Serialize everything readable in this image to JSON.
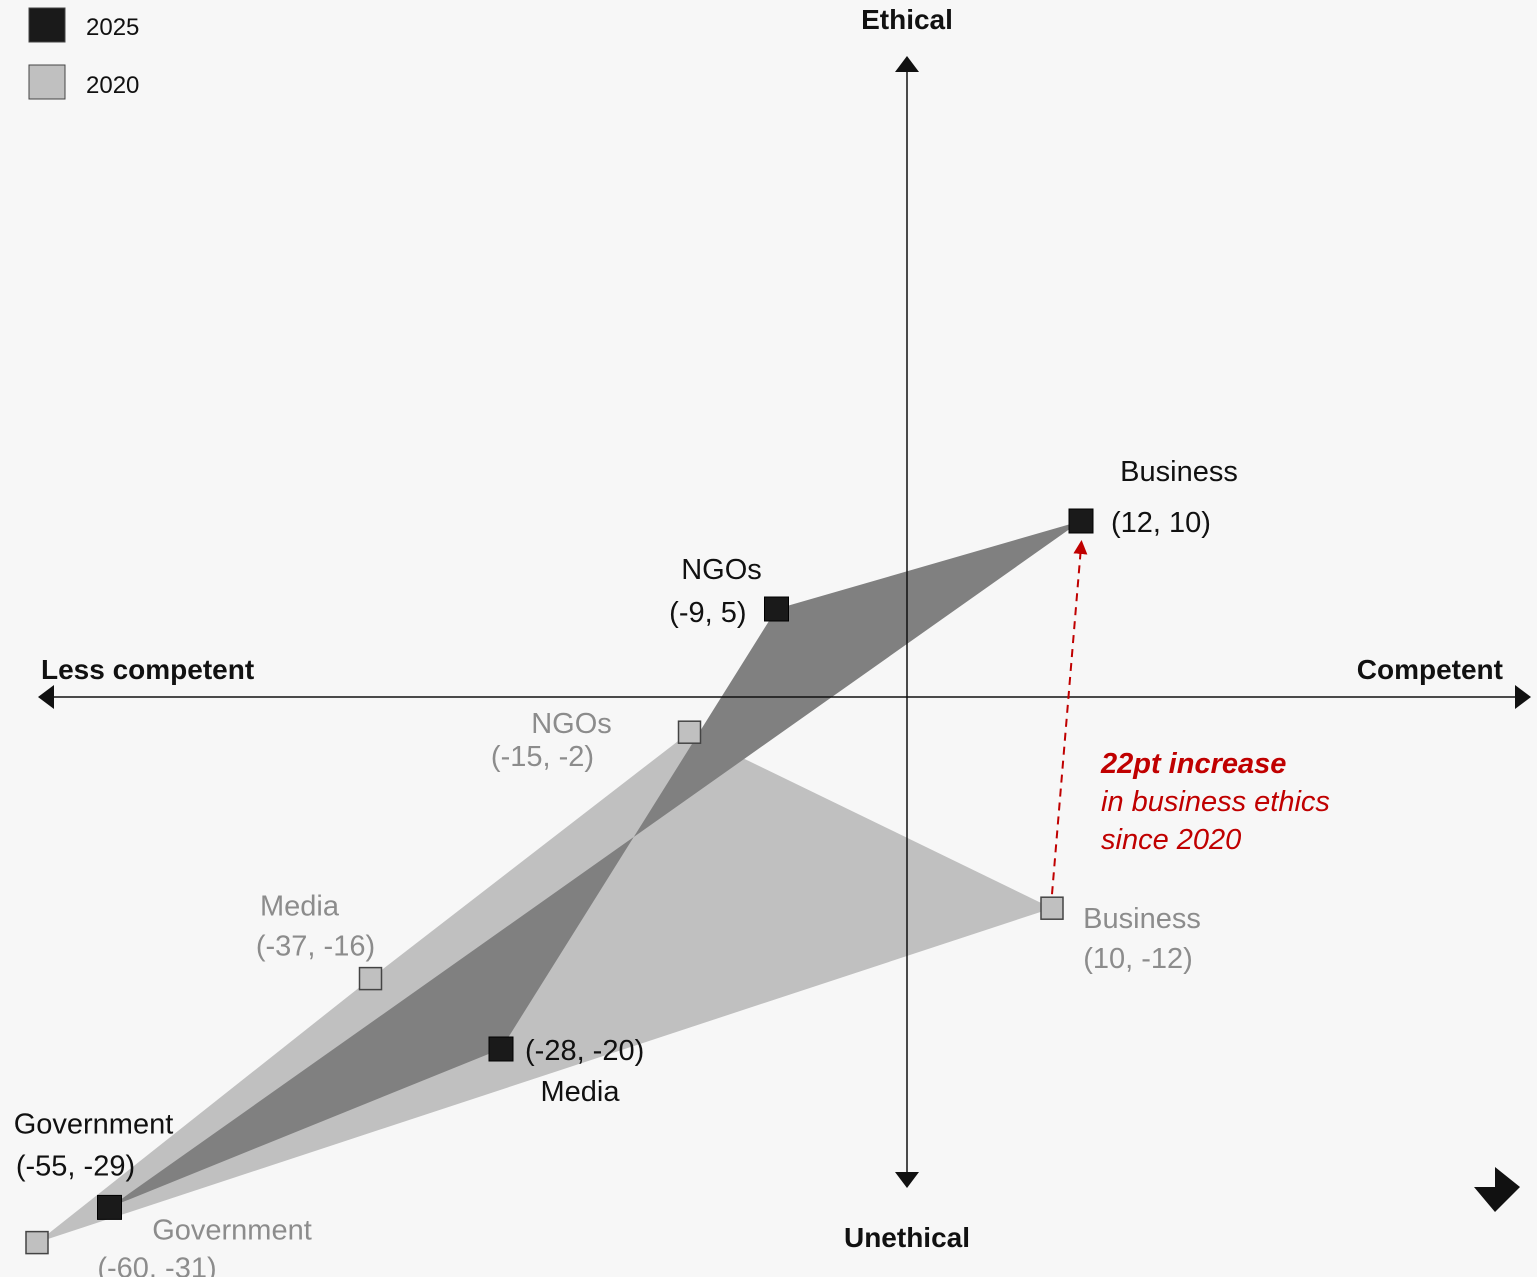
{
  "chart_data": {
    "type": "scatter",
    "axes": {
      "top": "Ethical",
      "bottom": "Unethical",
      "left": "Less competent",
      "right": "Competent"
    },
    "series": [
      {
        "name": "2025",
        "color": "#1a1a1a",
        "fill_color": "#808080",
        "points": [
          {
            "label": "Business",
            "coord": "(12, 10)",
            "x": 12,
            "y": 10
          },
          {
            "label": "NGOs",
            "coord": "(-9, 5)",
            "x": -9,
            "y": 5
          },
          {
            "label": "Media",
            "coord": "(-28, -20)",
            "x": -28,
            "y": -20
          },
          {
            "label": "Government",
            "coord": "(-55, -29)",
            "x": -55,
            "y": -29
          }
        ]
      },
      {
        "name": "2020",
        "color": "#c0c0c0",
        "fill_color": "#c0c0c0",
        "points": [
          {
            "label": "Business",
            "coord": "(10, -12)",
            "x": 10,
            "y": -12
          },
          {
            "label": "NGOs",
            "coord": "(-15, -2)",
            "x": -15,
            "y": -2
          },
          {
            "label": "Media",
            "coord": "(-37, -16)",
            "x": -37,
            "y": -16
          },
          {
            "label": "Government",
            "coord": "(-60, -31)",
            "x": -60,
            "y": -31
          }
        ]
      }
    ],
    "annotation": {
      "lines": [
        "22pt increase",
        "in business ethics",
        "since 2020"
      ],
      "color": "#c00000",
      "from": {
        "x": 10,
        "y": -12
      },
      "to": {
        "x": 12,
        "y": 10
      }
    },
    "grid": false,
    "legend_position": "top-left"
  }
}
